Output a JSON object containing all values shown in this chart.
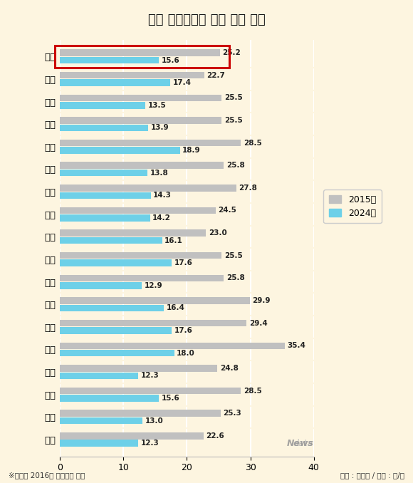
{
  "title": "전국 초미세먼지 농도 변화 추이",
  "categories": [
    "전국",
    "서울",
    "부산",
    "대구",
    "인천",
    "광주",
    "대전",
    "울산",
    "세종",
    "경기",
    "강원",
    "충북",
    "충남",
    "전북",
    "전남",
    "경북",
    "경남",
    "제주"
  ],
  "values_2015": [
    25.2,
    22.7,
    25.5,
    25.5,
    28.5,
    25.8,
    27.8,
    24.5,
    23.0,
    25.5,
    25.8,
    29.9,
    29.4,
    35.4,
    24.8,
    28.5,
    25.3,
    22.6
  ],
  "values_2024": [
    15.6,
    17.4,
    13.5,
    13.9,
    18.9,
    13.8,
    14.3,
    14.2,
    16.1,
    17.6,
    12.9,
    16.4,
    17.6,
    18.0,
    12.3,
    15.6,
    13.0,
    12.3
  ],
  "color_2015": "#c0c0c0",
  "color_2024": "#6dd0e8",
  "title_bg": "#f5c842",
  "chart_bg": "#fdf5e0",
  "highlight_rect_color": "#cc0000",
  "xlim": [
    0,
    40
  ],
  "xticks": [
    0,
    10,
    20,
    30,
    40
  ],
  "footnote_left": "※세종시 2016년 측정자료 기준",
  "footnote_right": "자료 : 환경부 / 단위 : ㎦/㎥",
  "legend_2015": "2015년",
  "legend_2024": "2024년"
}
